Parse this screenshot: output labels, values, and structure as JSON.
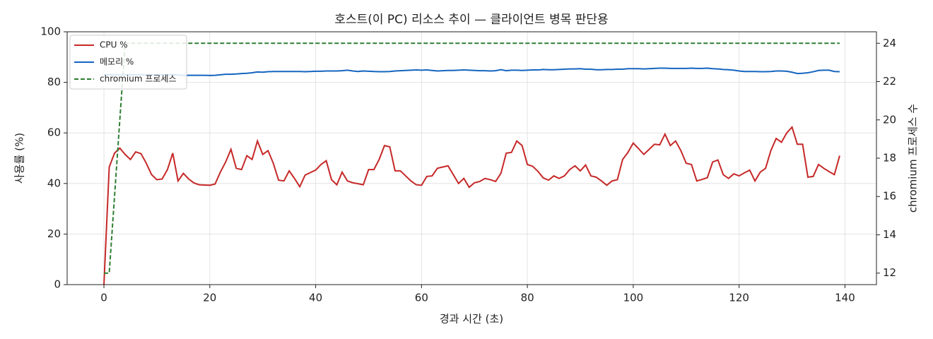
{
  "chart_data": {
    "type": "line",
    "title": "호스트(이 PC) 리소스 추이 — 클라이언트 병목 판단용",
    "x_label": "경과 시간 (초)",
    "y_label": "사용률 (%)",
    "y2_label": "chromium 프로세스 수",
    "x": [
      0,
      1,
      2,
      3,
      4,
      5,
      6,
      7,
      8,
      9,
      10,
      11,
      12,
      13,
      14,
      15,
      16,
      17,
      18,
      19,
      20,
      21,
      22,
      23,
      24,
      25,
      26,
      27,
      28,
      29,
      30,
      31,
      32,
      33,
      34,
      35,
      36,
      37,
      38,
      39,
      40,
      41,
      42,
      43,
      44,
      45,
      46,
      47,
      48,
      49,
      50,
      51,
      52,
      53,
      54,
      55,
      56,
      57,
      58,
      59,
      60,
      61,
      62,
      63,
      64,
      65,
      66,
      67,
      68,
      69,
      70,
      71,
      72,
      73,
      74,
      75,
      76,
      77,
      78,
      79,
      80,
      81,
      82,
      83,
      84,
      85,
      86,
      87,
      88,
      89,
      90,
      91,
      92,
      93,
      94,
      95,
      96,
      97,
      98,
      99,
      100,
      101,
      102,
      103,
      104,
      105,
      106,
      107,
      108,
      109,
      110,
      111,
      112,
      113,
      114,
      115,
      116,
      117,
      118,
      119,
      120,
      121,
      122,
      123,
      124,
      125,
      126,
      127,
      128,
      129,
      130,
      131,
      132,
      133,
      134,
      135,
      136,
      137,
      138,
      139
    ],
    "series": [
      {
        "name": "CPU %",
        "color": "#c62828",
        "axis": "y",
        "dashed": false,
        "values": [
          0,
          46.5,
          52,
          54,
          51.5,
          49.5,
          52.5,
          51.8,
          48,
          43.5,
          41.5,
          41.8,
          45.5,
          52,
          41,
          44,
          41.8,
          40.2,
          39.5,
          39.4,
          39.3,
          39.8,
          44.5,
          48.5,
          53.5,
          46,
          45.5,
          51,
          49.5,
          56.8,
          51.5,
          53,
          48,
          41.3,
          41,
          45,
          42,
          38.7,
          43.3,
          44.3,
          45.3,
          47.5,
          49,
          41.5,
          39.5,
          44.5,
          41,
          40.3,
          39.9,
          39.5,
          45.5,
          45.5,
          49.5,
          55,
          54.5,
          45,
          45,
          43,
          41,
          39.5,
          39.3,
          42.8,
          43,
          46,
          46.5,
          47,
          43.5,
          40,
          42,
          38.5,
          40.3,
          40.8,
          42,
          41.5,
          40.8,
          44,
          52,
          52.3,
          56.8,
          55,
          47.5,
          46.8,
          44.8,
          42.2,
          41.3,
          43,
          42,
          43,
          45.5,
          47,
          45,
          47.3,
          43,
          42.5,
          41,
          39.3,
          41,
          41.5,
          49.5,
          52.3,
          56,
          53.8,
          51.5,
          53.5,
          55.5,
          55.3,
          59.5,
          55,
          56.8,
          53,
          48,
          47.5,
          41,
          41.6,
          42.3,
          48.5,
          49.3,
          43.5,
          42,
          43.8,
          43,
          44.2,
          45.3,
          41,
          44.5,
          46,
          53,
          57.8,
          56.3,
          60,
          62.3,
          55.5,
          55.5,
          42.5,
          42.8,
          47.5,
          46,
          44.7,
          43.5,
          51
        ]
      },
      {
        "name": "메모리 %",
        "color": "#1565c0",
        "axis": "y",
        "dashed": false,
        "values": [
          83,
          83,
          83,
          83,
          83,
          83,
          83,
          83,
          83,
          83,
          83,
          83,
          83,
          83,
          82.9,
          82.7,
          82.8,
          82.8,
          82.8,
          82.8,
          82.7,
          82.8,
          83,
          83.2,
          83.2,
          83.3,
          83.5,
          83.6,
          83.8,
          84.1,
          84,
          84.2,
          84.3,
          84.3,
          84.3,
          84.3,
          84.3,
          84.3,
          84.2,
          84.3,
          84.4,
          84.4,
          84.5,
          84.5,
          84.5,
          84.6,
          84.8,
          84.5,
          84.3,
          84.5,
          84.4,
          84.3,
          84.2,
          84.2,
          84.3,
          84.5,
          84.6,
          84.7,
          84.8,
          84.9,
          84.8,
          84.9,
          84.7,
          84.5,
          84.6,
          84.7,
          84.7,
          84.8,
          84.9,
          84.8,
          84.7,
          84.6,
          84.6,
          84.5,
          84.6,
          85,
          84.6,
          84.8,
          84.8,
          84.7,
          84.8,
          84.9,
          84.9,
          85.1,
          85,
          85,
          85.1,
          85.2,
          85.3,
          85.3,
          85.4,
          85.2,
          85.2,
          85,
          85,
          85.1,
          85.1,
          85.2,
          85.2,
          85.4,
          85.4,
          85.4,
          85.3,
          85.4,
          85.5,
          85.6,
          85.6,
          85.5,
          85.5,
          85.5,
          85.5,
          85.6,
          85.5,
          85.5,
          85.6,
          85.4,
          85.3,
          85.1,
          85,
          84.8,
          84.5,
          84.3,
          84.3,
          84.3,
          84.2,
          84.2,
          84.3,
          84.5,
          84.5,
          84.4,
          84,
          83.5,
          83.6,
          83.8,
          84.2,
          84.7,
          84.8,
          84.8,
          84.3,
          84.2
        ]
      },
      {
        "name": "chromium 프로세스",
        "color": "#2e7d32",
        "axis": "y2",
        "dashed": true,
        "values": [
          12,
          12,
          16,
          20,
          24,
          24,
          24,
          24,
          24,
          24,
          24,
          24,
          24,
          24,
          24,
          24,
          24,
          24,
          24,
          24,
          24,
          24,
          24,
          24,
          24,
          24,
          24,
          24,
          24,
          24,
          24,
          24,
          24,
          24,
          24,
          24,
          24,
          24,
          24,
          24,
          24,
          24,
          24,
          24,
          24,
          24,
          24,
          24,
          24,
          24,
          24,
          24,
          24,
          24,
          24,
          24,
          24,
          24,
          24,
          24,
          24,
          24,
          24,
          24,
          24,
          24,
          24,
          24,
          24,
          24,
          24,
          24,
          24,
          24,
          24,
          24,
          24,
          24,
          24,
          24,
          24,
          24,
          24,
          24,
          24,
          24,
          24,
          24,
          24,
          24,
          24,
          24,
          24,
          24,
          24,
          24,
          24,
          24,
          24,
          24,
          24,
          24,
          24,
          24,
          24,
          24,
          24,
          24,
          24,
          24,
          24,
          24,
          24,
          24,
          24,
          24,
          24,
          24,
          24,
          24,
          24,
          24,
          24,
          24,
          24,
          24,
          24,
          24,
          24,
          24,
          24,
          24,
          24,
          24,
          24,
          24,
          24,
          24,
          24,
          24
        ]
      }
    ],
    "xlim": [
      -6.95,
      145.95
    ],
    "xticks": [
      0,
      20,
      40,
      60,
      80,
      100,
      120,
      140
    ],
    "ylim": [
      0,
      100
    ],
    "yticks": [
      0,
      20,
      40,
      60,
      80,
      100
    ],
    "y2lim": [
      11.4,
      24.6
    ],
    "y2ticks": [
      12,
      14,
      16,
      18,
      20,
      22,
      24
    ],
    "grid": true,
    "legend": "upper-left"
  }
}
